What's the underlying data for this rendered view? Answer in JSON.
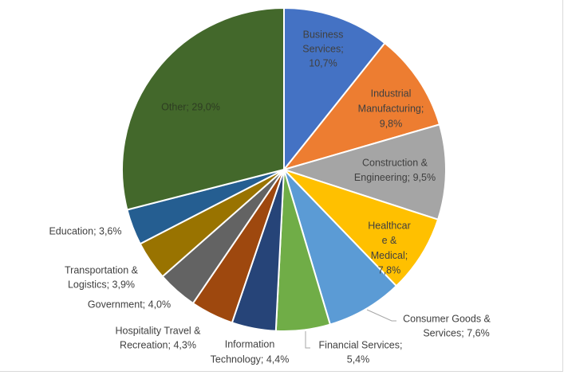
{
  "chart_data": {
    "type": "pie",
    "title": "",
    "start_angle_deg": 0,
    "direction": "clockwise",
    "slices": [
      {
        "name": "Business Services",
        "value": 10.7,
        "label_lines": [
          "Business",
          "Services;",
          "10,7%"
        ],
        "color": "#4472C4"
      },
      {
        "name": "Industrial Manufacturing",
        "value": 9.8,
        "label_lines": [
          "Industrial",
          "Manufacturing;",
          "9,8%"
        ],
        "color": "#ED7D31"
      },
      {
        "name": "Construction & Engineering",
        "value": 9.5,
        "label_lines": [
          "Construction &",
          "Engineering; 9,5%"
        ],
        "color": "#A5A5A5"
      },
      {
        "name": "Healthcare & Medical",
        "value": 7.8,
        "label_lines": [
          "Healthcar",
          "e &",
          "Medical;",
          "7,8%"
        ],
        "color": "#FFC000"
      },
      {
        "name": "Consumer Goods & Services",
        "value": 7.6,
        "label_lines": [
          "Consumer Goods &",
          "Services; 7,6%"
        ],
        "color": "#5B9BD5"
      },
      {
        "name": "Financial Services",
        "value": 5.4,
        "label_lines": [
          "Financial Services;",
          "5,4%"
        ],
        "color": "#70AD47"
      },
      {
        "name": "Information Technology",
        "value": 4.4,
        "label_lines": [
          "Information",
          "Technology; 4,4%"
        ],
        "color": "#264478"
      },
      {
        "name": "Hospitality Travel & Recreation",
        "value": 4.3,
        "label_lines": [
          "Hospitality Travel &",
          "Recreation; 4,3%"
        ],
        "color": "#9E480E"
      },
      {
        "name": "Government",
        "value": 4.0,
        "label_lines": [
          "Government; 4,0%"
        ],
        "color": "#636363"
      },
      {
        "name": "Transportation & Logistics",
        "value": 3.9,
        "label_lines": [
          "Transportation &",
          "Logistics; 3,9%"
        ],
        "color": "#997300"
      },
      {
        "name": "Education",
        "value": 3.6,
        "label_lines": [
          "Education; 3,6%"
        ],
        "color": "#255E91"
      },
      {
        "name": "Other",
        "value": 29.0,
        "label_lines": [
          "Other; 29,0%"
        ],
        "color": "#43682B"
      }
    ],
    "legend": "none"
  }
}
